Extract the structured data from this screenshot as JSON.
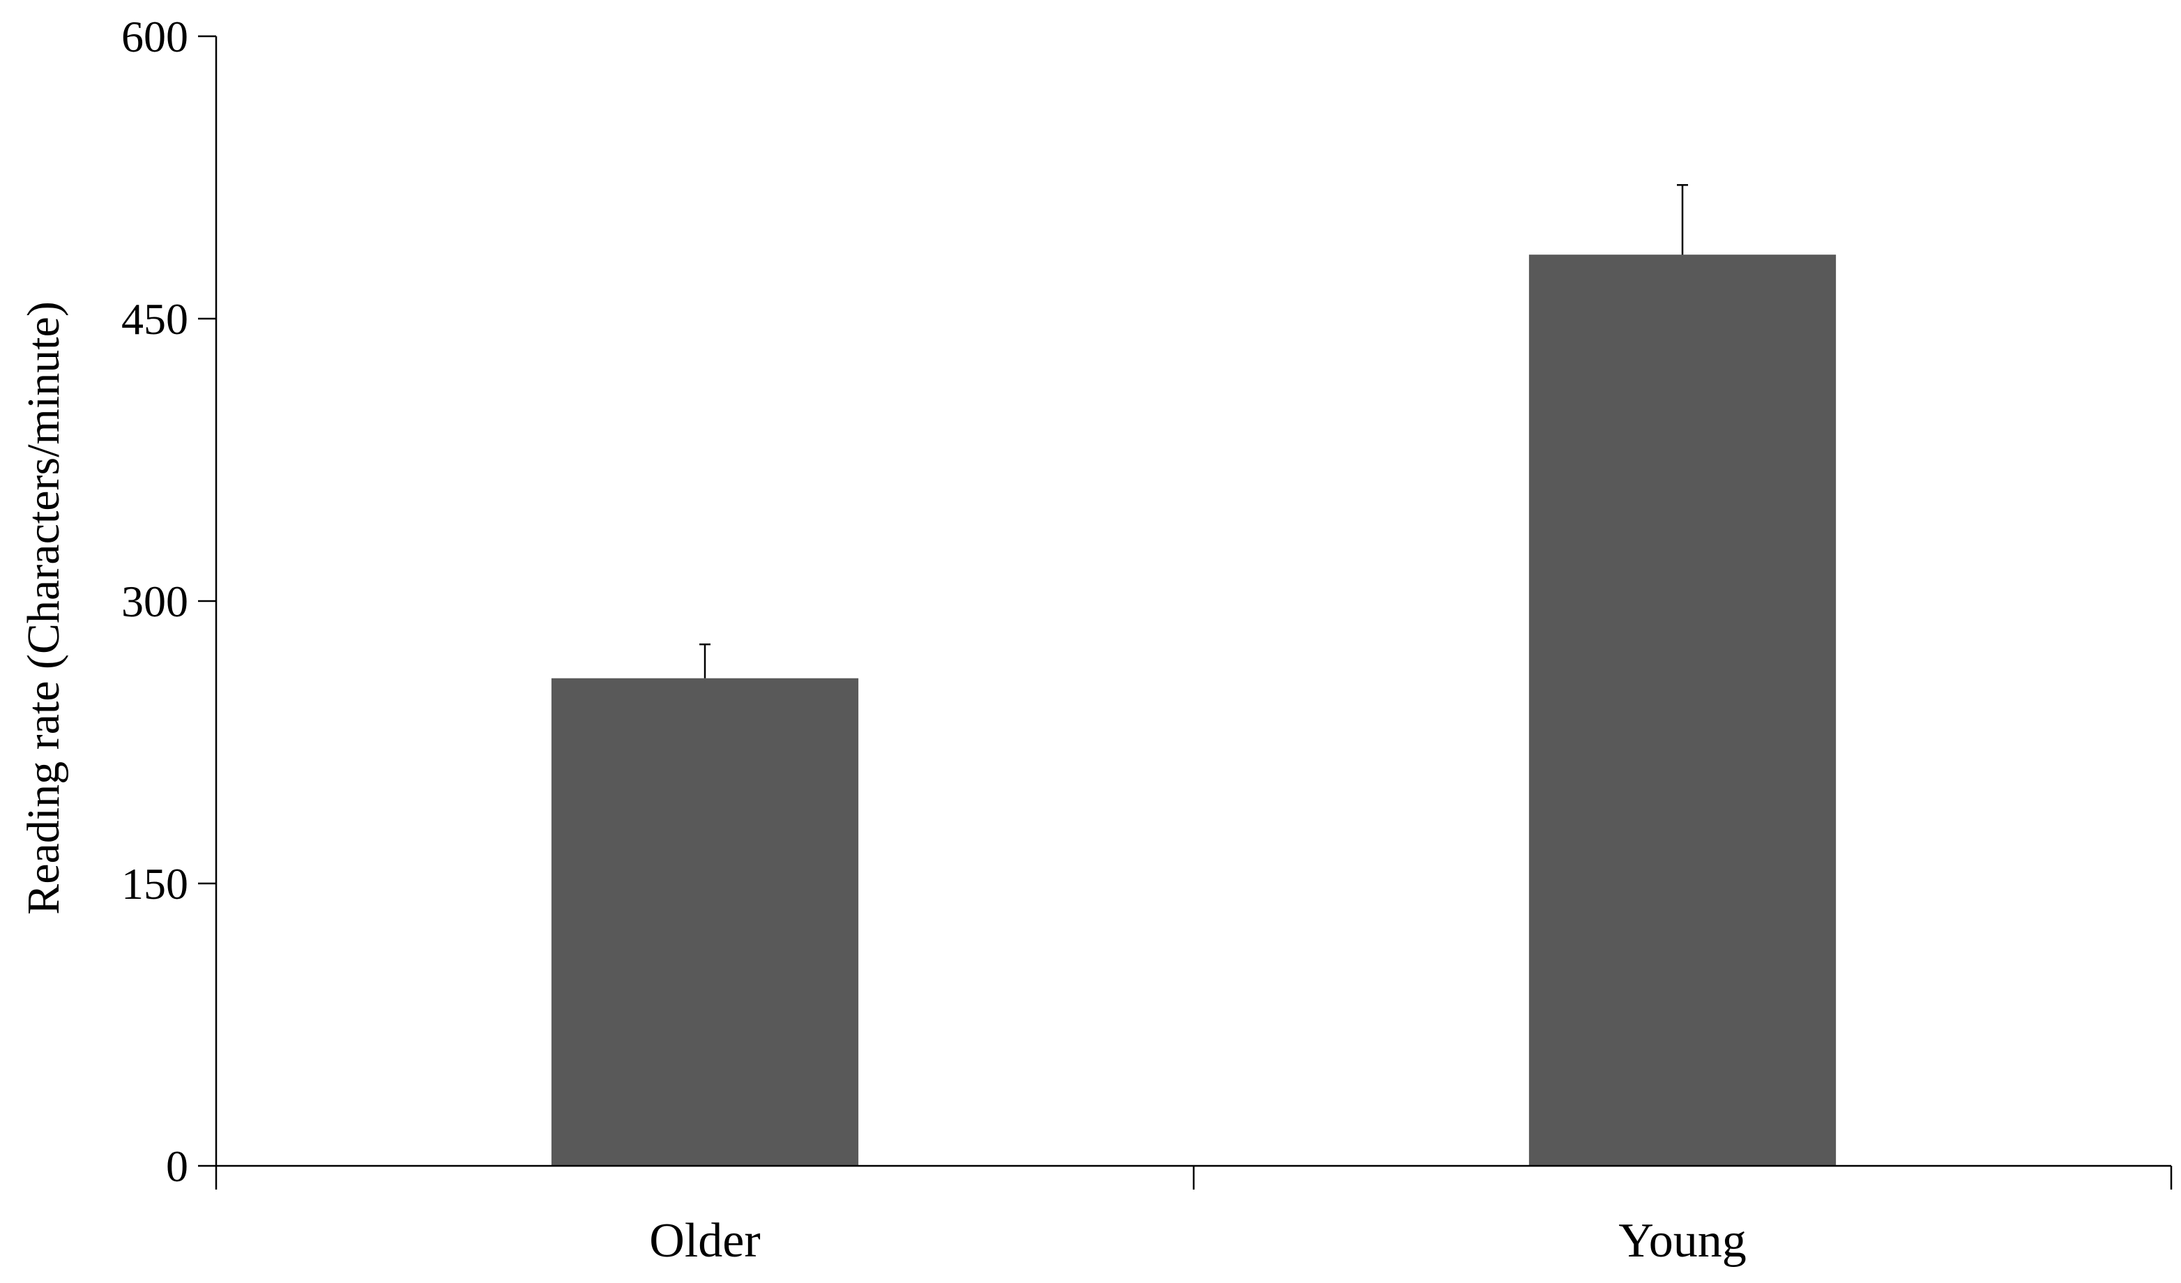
{
  "chart_data": {
    "type": "bar",
    "title": "",
    "xlabel": "",
    "ylabel": "Reading rate (Characters/minute)",
    "categories": [
      "Older",
      "Young"
    ],
    "values": [
      259,
      484
    ],
    "errors": [
      18,
      37
    ],
    "ylim": [
      0,
      600
    ],
    "yticks": [
      0,
      150,
      300,
      450,
      600
    ],
    "bar_color": "#595959",
    "grid": false,
    "legend": "none"
  }
}
